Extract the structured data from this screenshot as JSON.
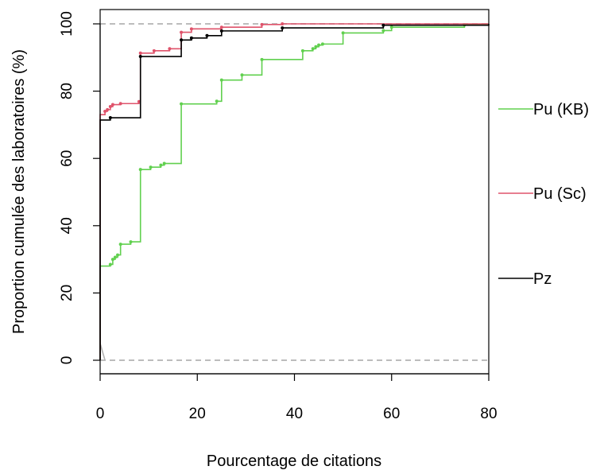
{
  "chart_data": {
    "type": "line",
    "step": true,
    "title": "",
    "xlabel": "Pourcentage de citations",
    "ylabel": "Proportion cumulée des laboratoires (%)",
    "xlim": [
      0,
      80
    ],
    "ylim": [
      0,
      100
    ],
    "x_ticks": [
      0,
      20,
      40,
      60,
      80
    ],
    "y_ticks": [
      0,
      20,
      40,
      60,
      80,
      100
    ],
    "reference_lines": [
      {
        "y": 0,
        "style": "dashed",
        "color": "#b3b3b3"
      },
      {
        "y": 100,
        "style": "dashed",
        "color": "#b3b3b3"
      }
    ],
    "legend_position": "right",
    "series": [
      {
        "name": "Pu (KB)",
        "color": "#61d04f",
        "points": [
          [
            0,
            28
          ],
          [
            2.1,
            28.5
          ],
          [
            2.6,
            30
          ],
          [
            3.1,
            30.6
          ],
          [
            3.6,
            31.3
          ],
          [
            4.2,
            34.5
          ],
          [
            6.3,
            35.2
          ],
          [
            8.3,
            56.7
          ],
          [
            10.4,
            57.4
          ],
          [
            12.5,
            58
          ],
          [
            13.2,
            58.5
          ],
          [
            16.7,
            76.2
          ],
          [
            24,
            77
          ],
          [
            25,
            83.3
          ],
          [
            29.2,
            84.8
          ],
          [
            33.3,
            89.4
          ],
          [
            41.7,
            92
          ],
          [
            43.8,
            92.6
          ],
          [
            44.4,
            93.2
          ],
          [
            45,
            93.7
          ],
          [
            45.8,
            94
          ],
          [
            50,
            97.3
          ],
          [
            58.3,
            98
          ],
          [
            60,
            99
          ],
          [
            75,
            99.7
          ],
          [
            80,
            100
          ]
        ]
      },
      {
        "name": "Pu (Sc)",
        "color": "#df536b",
        "points": [
          [
            0,
            73
          ],
          [
            1,
            74
          ],
          [
            1.5,
            74.5
          ],
          [
            2.1,
            75.4
          ],
          [
            2.6,
            76
          ],
          [
            4.2,
            76.3
          ],
          [
            8,
            76.9
          ],
          [
            8.3,
            91.3
          ],
          [
            11.1,
            92
          ],
          [
            14.3,
            92.6
          ],
          [
            16.7,
            97.5
          ],
          [
            18.8,
            98.5
          ],
          [
            25,
            99
          ],
          [
            33.3,
            99.8
          ],
          [
            37.5,
            100
          ],
          [
            80,
            100
          ]
        ]
      },
      {
        "name": "Pz",
        "color": "#000000",
        "points": [
          [
            0,
            71.4
          ],
          [
            2.1,
            72.1
          ],
          [
            8.3,
            90.3
          ],
          [
            16.7,
            95.2
          ],
          [
            18.8,
            95.8
          ],
          [
            22,
            96.5
          ],
          [
            25,
            97.9
          ],
          [
            37.5,
            98.8
          ],
          [
            58.3,
            99.6
          ],
          [
            80,
            100
          ]
        ]
      }
    ]
  }
}
